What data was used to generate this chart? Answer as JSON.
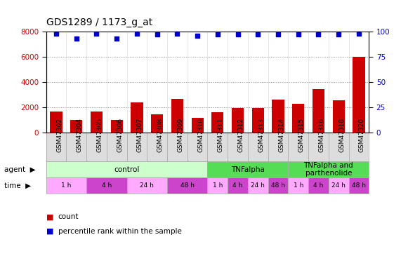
{
  "title": "GDS1289 / 1173_g_at",
  "samples": [
    "GSM47302",
    "GSM47304",
    "GSM47305",
    "GSM47306",
    "GSM47307",
    "GSM47308",
    "GSM47309",
    "GSM47310",
    "GSM47311",
    "GSM47312",
    "GSM47313",
    "GSM47314",
    "GSM47315",
    "GSM47316",
    "GSM47318",
    "GSM47320"
  ],
  "counts": [
    1700,
    1000,
    1700,
    1000,
    2400,
    1450,
    2650,
    1150,
    1600,
    1950,
    1950,
    2600,
    2300,
    3450,
    2550,
    6000
  ],
  "percentile": [
    98,
    93,
    98,
    93,
    98,
    97,
    98,
    96,
    97,
    97,
    97,
    97,
    97,
    97,
    97,
    98
  ],
  "bar_color": "#cc0000",
  "dot_color": "#0000cc",
  "ylim_left": [
    0,
    8000
  ],
  "ylim_right": [
    0,
    100
  ],
  "yticks_left": [
    0,
    2000,
    4000,
    6000,
    8000
  ],
  "yticks_right": [
    0,
    25,
    50,
    75,
    100
  ],
  "agent_defs": [
    {
      "label": "control",
      "start": 0,
      "end": 8,
      "color": "#ccffcc"
    },
    {
      "label": "TNFalpha",
      "start": 8,
      "end": 12,
      "color": "#55dd55"
    },
    {
      "label": "TNFalpha and\nparthenolide",
      "start": 12,
      "end": 16,
      "color": "#55dd55"
    }
  ],
  "time_defs": [
    {
      "label": "1 h",
      "start": 0,
      "end": 2,
      "color": "#ffaaff"
    },
    {
      "label": "4 h",
      "start": 2,
      "end": 4,
      "color": "#cc44cc"
    },
    {
      "label": "24 h",
      "start": 4,
      "end": 6,
      "color": "#ffaaff"
    },
    {
      "label": "48 h",
      "start": 6,
      "end": 8,
      "color": "#cc44cc"
    },
    {
      "label": "1 h",
      "start": 8,
      "end": 9,
      "color": "#ffaaff"
    },
    {
      "label": "4 h",
      "start": 9,
      "end": 10,
      "color": "#cc44cc"
    },
    {
      "label": "24 h",
      "start": 10,
      "end": 11,
      "color": "#ffaaff"
    },
    {
      "label": "48 h",
      "start": 11,
      "end": 12,
      "color": "#cc44cc"
    },
    {
      "label": "1 h",
      "start": 12,
      "end": 13,
      "color": "#ffaaff"
    },
    {
      "label": "4 h",
      "start": 13,
      "end": 14,
      "color": "#cc44cc"
    },
    {
      "label": "24 h",
      "start": 14,
      "end": 15,
      "color": "#ffaaff"
    },
    {
      "label": "48 h",
      "start": 15,
      "end": 16,
      "color": "#cc44cc"
    }
  ],
  "tick_fontsize": 7,
  "title_fontsize": 10,
  "annot_fontsize": 8
}
